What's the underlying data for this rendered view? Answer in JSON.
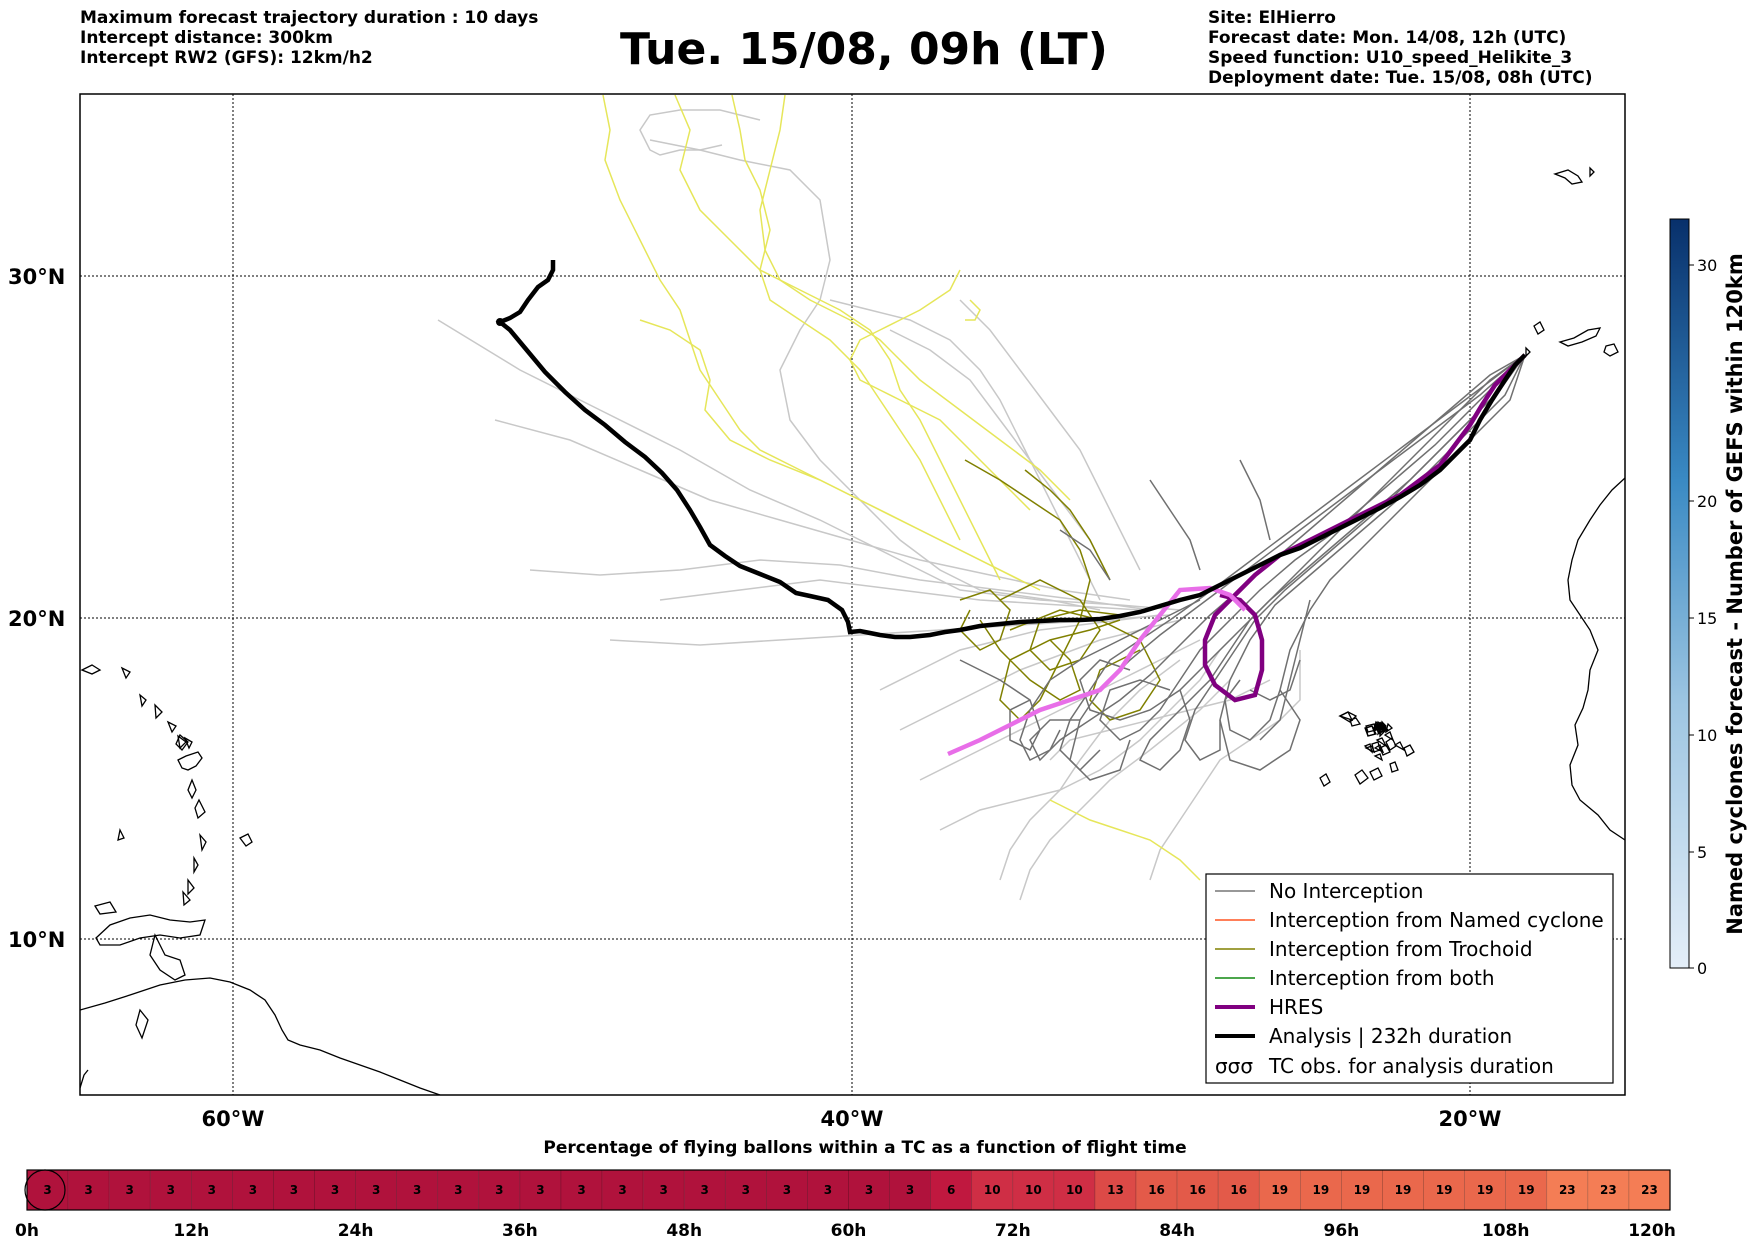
{
  "header_left": [
    "Maximum forecast trajectory duration : 10 days",
    "Intercept distance: 300km",
    "Intercept RW2 (GFS):  12km/h2"
  ],
  "title": "Tue. 15/08, 09h (LT)",
  "header_right": [
    "Site: ElHierro",
    "Forecast date: Mon. 14/08, 12h (UTC)",
    "Speed function: U10_speed_Helikite_3",
    "Deployment date: Tue. 15/08, 08h (UTC)"
  ],
  "map": {
    "lat_labels": [
      "30°N",
      "20°N",
      "10°N"
    ],
    "lon_labels": [
      "60°W",
      "40°W",
      "20°W"
    ],
    "lat_range": [
      5.5,
      34.8
    ],
    "lon_range": [
      -65,
      -15
    ]
  },
  "legend": {
    "items": [
      {
        "label": "No Interception",
        "color": "#777777"
      },
      {
        "label": "Interception from Named cyclone",
        "color": "#ff5522"
      },
      {
        "label": "Interception from Trochoid",
        "color": "#808000"
      },
      {
        "label": "Interception from both",
        "color": "#118811"
      },
      {
        "label": "HRES",
        "color": "#800080"
      },
      {
        "label": "Analysis | 232h duration",
        "color": "#000000"
      },
      {
        "label": "TC obs. for analysis duration",
        "color": "#000000"
      }
    ],
    "tc_symbol": "σσσ"
  },
  "colorbar": {
    "label": "Named cyclones forecast - Number of GEFS within 120km",
    "ticks": [
      "0",
      "5",
      "10",
      "15",
      "20",
      "30"
    ]
  },
  "timeline": {
    "title": "Percentage of flying ballons within a TC as a function of flight time",
    "values": [
      3,
      3,
      3,
      3,
      3,
      3,
      3,
      3,
      3,
      3,
      3,
      3,
      3,
      3,
      3,
      3,
      3,
      3,
      3,
      3,
      3,
      3,
      6,
      10,
      10,
      10,
      13,
      16,
      16,
      16,
      19,
      19,
      19,
      19,
      19,
      19,
      19,
      23,
      23,
      23
    ],
    "labels": [
      "0h",
      "12h",
      "24h",
      "36h",
      "48h",
      "60h",
      "72h",
      "84h",
      "96h",
      "108h",
      "120h"
    ]
  }
}
